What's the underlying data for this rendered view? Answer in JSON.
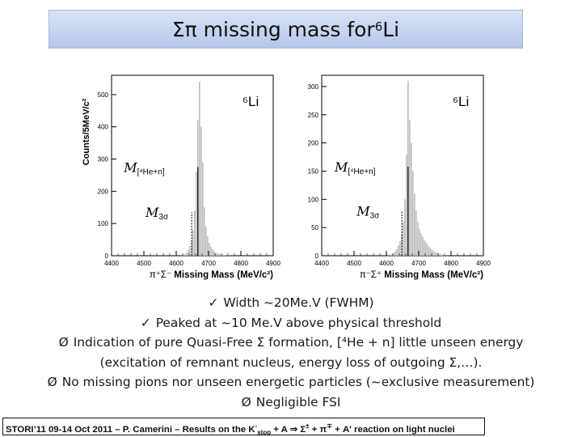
{
  "slide": {
    "title_main": "Σπ missing mass for ",
    "title_sup": "6",
    "title_end": "Li",
    "bullets": [
      {
        "mark": "✓",
        "text": "Width ~20Me.V (FWHM)"
      },
      {
        "mark": "✓",
        "text": "Peaked at ~10 Me.V above physical threshold"
      },
      {
        "mark": "Ø",
        "text": "Indication of pure Quasi-Free Σ formation, [⁴He + n] little unseen energy"
      },
      {
        "mark": "",
        "text": "(excitation of remnant nucleus, energy loss of outgoing Σ,…)."
      },
      {
        "mark": "Ø",
        "text": "No missing pions nor unseen energetic particles (~exclusive measurement)"
      },
      {
        "mark": "Ø",
        "text": "Negligible FSI"
      }
    ],
    "footer": {
      "part1": "STORI’11 09-14 Oct 2011 – P. Camerini – Results on the K",
      "sup1": "-",
      "sub1": "stop",
      "part2": " + A ⇒ Σ",
      "sup2": "±",
      "part3": " + π",
      "sup3": "∓",
      "part4": " + A' reaction on light nuclei"
    }
  },
  "chart_data": [
    {
      "type": "bar",
      "ylabel": "Counts/5MeV/c²",
      "xlabel_prefix": "π⁺Σ⁻",
      "xlabel": "Missing Mass (MeV/c²)",
      "nucleus_label": "⁶Li",
      "xlim": [
        4400,
        4900
      ],
      "ylim": [
        0,
        560
      ],
      "xticks": [
        4400,
        4500,
        4600,
        4700,
        4800,
        4900
      ],
      "yticks": [
        0,
        100,
        200,
        300,
        400,
        500
      ],
      "annotations": [
        {
          "main": "M",
          "sub": "[⁴He+n]",
          "at_x": 4667,
          "x": 4588,
          "y": 275
        },
        {
          "main": "M",
          "sub": "3σ",
          "at_x": 4648,
          "x": 4595,
          "y": 135
        }
      ],
      "bin_width": 5,
      "bins": [
        [
          4620,
          3
        ],
        [
          4625,
          6
        ],
        [
          4630,
          10
        ],
        [
          4635,
          18
        ],
        [
          4640,
          30
        ],
        [
          4645,
          48
        ],
        [
          4650,
          80
        ],
        [
          4655,
          140
        ],
        [
          4660,
          260
        ],
        [
          4665,
          420
        ],
        [
          4670,
          540
        ],
        [
          4675,
          400
        ],
        [
          4680,
          290
        ],
        [
          4685,
          150
        ],
        [
          4690,
          90
        ],
        [
          4695,
          60
        ],
        [
          4700,
          40
        ],
        [
          4705,
          28
        ],
        [
          4710,
          20
        ],
        [
          4715,
          14
        ],
        [
          4720,
          10
        ],
        [
          4725,
          8
        ],
        [
          4730,
          6
        ],
        [
          4735,
          5
        ],
        [
          4740,
          4
        ],
        [
          4745,
          3
        ],
        [
          4750,
          2
        ],
        [
          4760,
          1
        ]
      ]
    },
    {
      "type": "bar",
      "ylabel": "",
      "xlabel_prefix": "π⁻Σ⁺",
      "xlabel": "Missing Mass (MeV/c²)",
      "nucleus_label": "⁶Li",
      "xlim": [
        4400,
        4900
      ],
      "ylim": [
        0,
        320
      ],
      "xticks": [
        4400,
        4500,
        4600,
        4700,
        4800,
        4900
      ],
      "yticks": [
        0,
        50,
        100,
        150,
        200,
        250,
        300
      ],
      "annotations": [
        {
          "main": "M",
          "sub": "[⁴He+n]",
          "at_x": 4667,
          "x": 4590,
          "y": 158
        },
        {
          "main": "M",
          "sub": "3σ",
          "at_x": 4648,
          "x": 4598,
          "y": 80
        }
      ],
      "bin_width": 5,
      "bins": [
        [
          4610,
          2
        ],
        [
          4615,
          3
        ],
        [
          4620,
          5
        ],
        [
          4625,
          8
        ],
        [
          4630,
          12
        ],
        [
          4635,
          18
        ],
        [
          4640,
          26
        ],
        [
          4645,
          38
        ],
        [
          4650,
          60
        ],
        [
          4655,
          100
        ],
        [
          4660,
          180
        ],
        [
          4665,
          310
        ],
        [
          4670,
          240
        ],
        [
          4675,
          200
        ],
        [
          4680,
          150
        ],
        [
          4685,
          110
        ],
        [
          4690,
          80
        ],
        [
          4695,
          60
        ],
        [
          4700,
          48
        ],
        [
          4705,
          40
        ],
        [
          4710,
          34
        ],
        [
          4715,
          28
        ],
        [
          4720,
          24
        ],
        [
          4725,
          20
        ],
        [
          4730,
          16
        ],
        [
          4735,
          13
        ],
        [
          4740,
          10
        ],
        [
          4745,
          8
        ],
        [
          4750,
          6
        ],
        [
          4755,
          5
        ],
        [
          4760,
          4
        ],
        [
          4765,
          3
        ],
        [
          4770,
          2
        ],
        [
          4780,
          1
        ]
      ]
    }
  ]
}
